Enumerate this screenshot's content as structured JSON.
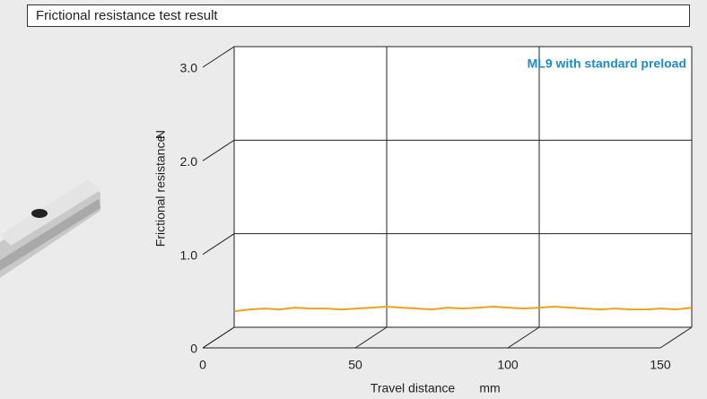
{
  "chart_data": {
    "type": "line",
    "title": "Frictional resistance test result",
    "x_label": "Travel distance",
    "x_unit": "mm",
    "y_label": "Frictional resistance",
    "y_unit": "N",
    "x": [
      0,
      5,
      10,
      15,
      20,
      25,
      30,
      35,
      40,
      45,
      50,
      55,
      60,
      65,
      70,
      75,
      80,
      85,
      90,
      95,
      100,
      105,
      110,
      115,
      120,
      125,
      130,
      135,
      140,
      145,
      150
    ],
    "series": [
      {
        "name": "ML9 with standard preload",
        "color": "#e9a31c",
        "legend_color": "#1b8cc8",
        "values": [
          0.17,
          0.19,
          0.2,
          0.19,
          0.21,
          0.2,
          0.2,
          0.19,
          0.2,
          0.21,
          0.22,
          0.21,
          0.2,
          0.19,
          0.21,
          0.2,
          0.21,
          0.22,
          0.21,
          0.2,
          0.21,
          0.22,
          0.21,
          0.2,
          0.19,
          0.2,
          0.19,
          0.19,
          0.2,
          0.19,
          0.21
        ]
      }
    ],
    "xlim": [
      0,
      150
    ],
    "xticks": [
      0,
      50,
      100,
      150
    ],
    "ylim": [
      0,
      3
    ],
    "yticks": [
      0,
      {
        "value": 1,
        "label": "1.0"
      },
      {
        "value": 2,
        "label": "2.0"
      },
      {
        "value": 3,
        "label": "3.0"
      }
    ],
    "grid": true
  }
}
